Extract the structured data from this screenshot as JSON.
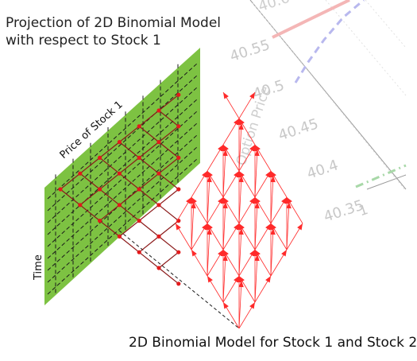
{
  "title": {
    "line1": "Projection of 2D Binomial Model",
    "line2": "with respect to Stock 1"
  },
  "caption": "2D Binomial Model for Stock 1 and Stock 2",
  "plane": {
    "axis_label_price": "Price of Stock 1",
    "axis_label_time": "Time",
    "fill_color": "#7dc242"
  },
  "background_chart": {
    "ylabel": "Option Price",
    "yticks": [
      "40.6",
      "40.55",
      "40.5",
      "40.45",
      "40.4",
      "40.35"
    ],
    "xtick": "1",
    "series_colors": [
      "#f4b6b6",
      "#b8b8ee",
      "#a8d8a8"
    ]
  },
  "colors": {
    "node": "#e31a1c",
    "arrow": "#ff2a2a",
    "tree_line": "#8b1a1a",
    "grid_line": "#1a1a1a"
  }
}
